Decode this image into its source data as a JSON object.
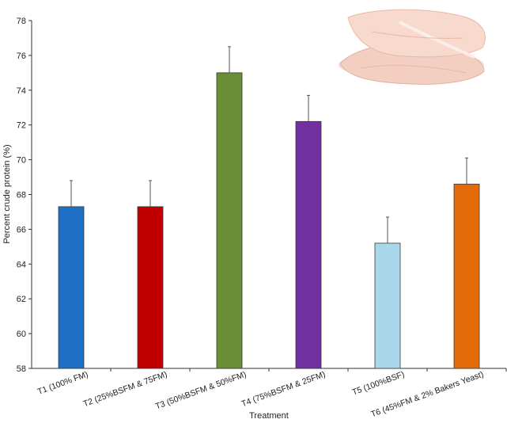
{
  "chart_data": {
    "type": "bar",
    "categories": [
      "T1 (100% FM)",
      "T2 (25%BSFM & 75FM)",
      "T3 (50%BSFM & 50%FM)",
      "T4 (75%BSFM & 25FM)",
      "T5 (100%BSF)",
      "T6 (45%FM & 2% Bakers Yeast)"
    ],
    "values": [
      67.3,
      67.3,
      75.0,
      72.2,
      65.2,
      68.6
    ],
    "error_upper": [
      1.5,
      1.5,
      1.5,
      1.5,
      1.5,
      1.5
    ],
    "colors": [
      "#1f6fc6",
      "#c00000",
      "#6a8e35",
      "#7030a0",
      "#a8d8ea",
      "#e36c09"
    ],
    "xlabel": "Treatment",
    "ylabel": "Percent crude protein (%)",
    "ylim": [
      58,
      78
    ],
    "yticks": [
      58,
      60,
      62,
      64,
      66,
      68,
      70,
      72,
      74,
      76,
      78
    ],
    "grid": false,
    "legend": "none",
    "inset_image": "fish-fillet-photo"
  }
}
